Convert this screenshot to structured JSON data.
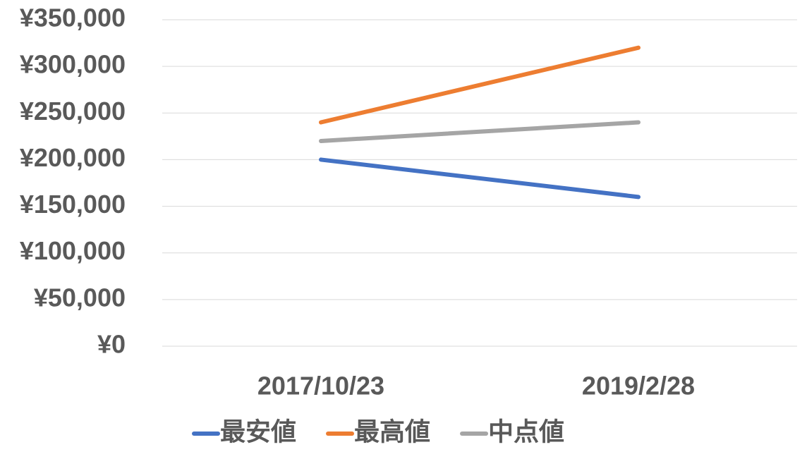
{
  "chart_data": {
    "type": "line",
    "categories": [
      "2017/10/23",
      "2019/2/28"
    ],
    "series": [
      {
        "name": "最安値",
        "color": "#4472c4",
        "values": [
          200000,
          160000
        ]
      },
      {
        "name": "最高値",
        "color": "#ed7d31",
        "values": [
          240000,
          320000
        ]
      },
      {
        "name": "中点値",
        "color": "#a5a5a5",
        "values": [
          220000,
          240000
        ]
      }
    ],
    "ylim": [
      0,
      350000
    ],
    "yticks": [
      {
        "value": 0,
        "label": "¥0"
      },
      {
        "value": 50000,
        "label": "¥50,000"
      },
      {
        "value": 100000,
        "label": "¥100,000"
      },
      {
        "value": 150000,
        "label": "¥150,000"
      },
      {
        "value": 200000,
        "label": "¥200,000"
      },
      {
        "value": 250000,
        "label": "¥250,000"
      },
      {
        "value": 300000,
        "label": "¥300,000"
      },
      {
        "value": 350000,
        "label": "¥350,000"
      }
    ],
    "grid": true,
    "legend": "bottom"
  }
}
